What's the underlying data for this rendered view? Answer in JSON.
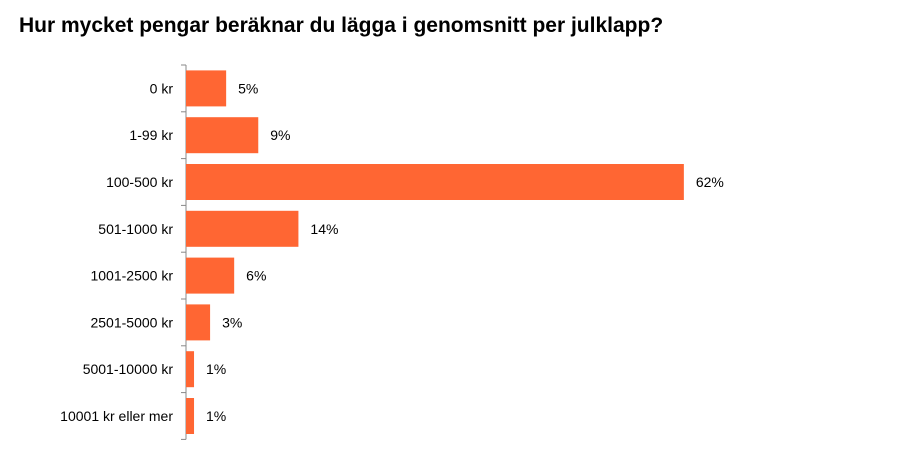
{
  "chart_data": {
    "type": "bar",
    "orientation": "horizontal",
    "title": "Hur mycket pengar beräknar du lägga i genomsnitt per julklapp?",
    "categories": [
      "0 kr",
      "1-99 kr",
      "100-500 kr",
      "501-1000 kr",
      "1001-2500 kr",
      "2501-5000 kr",
      "5001-10000 kr",
      "10001 kr eller mer"
    ],
    "values": [
      5,
      9,
      62,
      14,
      6,
      3,
      1,
      1
    ],
    "value_labels": [
      "5%",
      "9%",
      "62%",
      "14%",
      "6%",
      "3%",
      "1%",
      "1%"
    ],
    "unit": "%",
    "xlim": [
      0,
      100
    ],
    "grid": false,
    "legend": "none",
    "bar_color": "#FF6633"
  }
}
